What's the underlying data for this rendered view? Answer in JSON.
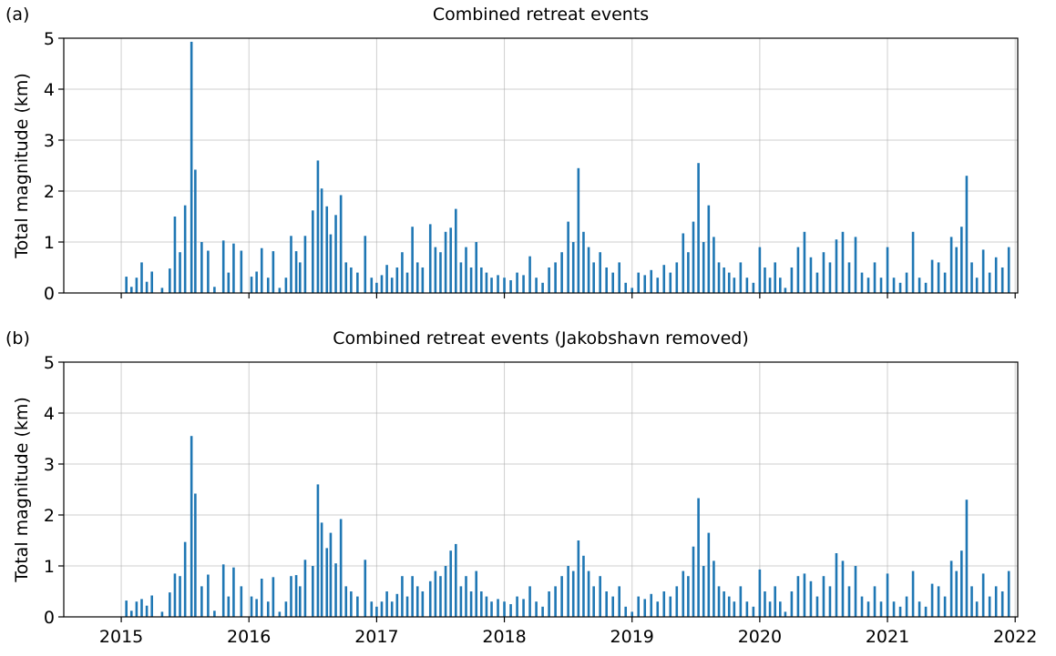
{
  "chart_data": [
    {
      "type": "bar",
      "label": "(a)",
      "title": "Combined retreat events",
      "y_label": "Total magnitude (km)",
      "color": "#1f77b4",
      "grid": true,
      "xlim": [
        2014.55,
        2022.02
      ],
      "xticks": [
        2015,
        2016,
        2017,
        2018,
        2019,
        2020,
        2021,
        2022
      ],
      "ylim": [
        0,
        5
      ],
      "yticks": [
        0,
        1,
        2,
        3,
        4,
        5
      ],
      "x": [
        2015.04,
        2015.08,
        2015.12,
        2015.16,
        2015.2,
        2015.24,
        2015.32,
        2015.38,
        2015.42,
        2015.46,
        2015.5,
        2015.55,
        2015.58,
        2015.63,
        2015.68,
        2015.73,
        2015.8,
        2015.84,
        2015.88,
        2015.94,
        2016.02,
        2016.06,
        2016.1,
        2016.15,
        2016.19,
        2016.24,
        2016.29,
        2016.33,
        2016.37,
        2016.4,
        2016.44,
        2016.5,
        2016.54,
        2016.57,
        2016.61,
        2016.64,
        2016.68,
        2016.72,
        2016.76,
        2016.8,
        2016.85,
        2016.91,
        2016.96,
        2017.0,
        2017.04,
        2017.08,
        2017.12,
        2017.16,
        2017.2,
        2017.24,
        2017.28,
        2017.32,
        2017.36,
        2017.42,
        2017.46,
        2017.5,
        2017.54,
        2017.58,
        2017.62,
        2017.66,
        2017.7,
        2017.74,
        2017.78,
        2017.82,
        2017.86,
        2017.9,
        2017.95,
        2018.0,
        2018.05,
        2018.1,
        2018.15,
        2018.2,
        2018.25,
        2018.3,
        2018.35,
        2018.4,
        2018.45,
        2018.5,
        2018.54,
        2018.58,
        2018.62,
        2018.66,
        2018.7,
        2018.75,
        2018.8,
        2018.85,
        2018.9,
        2018.95,
        2019.0,
        2019.05,
        2019.1,
        2019.15,
        2019.2,
        2019.25,
        2019.3,
        2019.35,
        2019.4,
        2019.44,
        2019.48,
        2019.52,
        2019.56,
        2019.6,
        2019.64,
        2019.68,
        2019.72,
        2019.76,
        2019.8,
        2019.85,
        2019.9,
        2019.95,
        2020.0,
        2020.04,
        2020.08,
        2020.12,
        2020.16,
        2020.2,
        2020.25,
        2020.3,
        2020.35,
        2020.4,
        2020.45,
        2020.5,
        2020.55,
        2020.6,
        2020.65,
        2020.7,
        2020.75,
        2020.8,
        2020.85,
        2020.9,
        2020.95,
        2021.0,
        2021.05,
        2021.1,
        2021.15,
        2021.2,
        2021.25,
        2021.3,
        2021.35,
        2021.4,
        2021.45,
        2021.5,
        2021.54,
        2021.58,
        2021.62,
        2021.66,
        2021.7,
        2021.75,
        2021.8,
        2021.85,
        2021.9,
        2021.95
      ],
      "values": [
        0.32,
        0.12,
        0.3,
        0.6,
        0.22,
        0.42,
        0.1,
        0.48,
        1.5,
        0.8,
        1.72,
        4.93,
        2.42,
        1.0,
        0.83,
        0.12,
        1.03,
        0.4,
        0.97,
        0.83,
        0.32,
        0.42,
        0.88,
        0.3,
        0.82,
        0.1,
        0.3,
        1.12,
        0.82,
        0.6,
        1.12,
        1.62,
        2.6,
        2.05,
        1.7,
        1.15,
        1.53,
        1.92,
        0.6,
        0.5,
        0.4,
        1.12,
        0.3,
        0.2,
        0.35,
        0.55,
        0.3,
        0.5,
        0.8,
        0.4,
        1.3,
        0.6,
        0.5,
        1.35,
        0.9,
        0.8,
        1.2,
        1.28,
        1.65,
        0.6,
        0.9,
        0.5,
        1.0,
        0.5,
        0.4,
        0.3,
        0.35,
        0.3,
        0.25,
        0.4,
        0.35,
        0.72,
        0.3,
        0.2,
        0.5,
        0.6,
        0.8,
        1.4,
        1.0,
        2.45,
        1.2,
        0.9,
        0.6,
        0.8,
        0.5,
        0.4,
        0.6,
        0.2,
        0.1,
        0.4,
        0.35,
        0.45,
        0.3,
        0.55,
        0.4,
        0.6,
        1.17,
        0.8,
        1.4,
        2.55,
        1.0,
        1.72,
        1.1,
        0.6,
        0.5,
        0.4,
        0.3,
        0.6,
        0.3,
        0.2,
        0.9,
        0.5,
        0.3,
        0.6,
        0.3,
        0.1,
        0.5,
        0.9,
        1.2,
        0.7,
        0.4,
        0.8,
        0.6,
        1.05,
        1.2,
        0.6,
        1.1,
        0.4,
        0.3,
        0.6,
        0.3,
        0.9,
        0.3,
        0.2,
        0.4,
        1.2,
        0.3,
        0.2,
        0.65,
        0.6,
        0.4,
        1.1,
        0.9,
        1.3,
        2.3,
        0.6,
        0.3,
        0.85,
        0.4,
        0.7,
        0.5,
        0.9
      ]
    },
    {
      "type": "bar",
      "label": "(b)",
      "title": "Combined retreat events (Jakobshavn removed)",
      "y_label": "Total magnitude (km)",
      "color": "#1f77b4",
      "grid": true,
      "xlim": [
        2014.55,
        2022.02
      ],
      "xticks": [
        2015,
        2016,
        2017,
        2018,
        2019,
        2020,
        2021,
        2022
      ],
      "ylim": [
        0,
        5
      ],
      "yticks": [
        0,
        1,
        2,
        3,
        4,
        5
      ],
      "x": [
        2015.04,
        2015.08,
        2015.12,
        2015.16,
        2015.2,
        2015.24,
        2015.32,
        2015.38,
        2015.42,
        2015.46,
        2015.5,
        2015.55,
        2015.58,
        2015.63,
        2015.68,
        2015.73,
        2015.8,
        2015.84,
        2015.88,
        2015.94,
        2016.02,
        2016.06,
        2016.1,
        2016.15,
        2016.19,
        2016.24,
        2016.29,
        2016.33,
        2016.37,
        2016.4,
        2016.44,
        2016.5,
        2016.54,
        2016.57,
        2016.61,
        2016.64,
        2016.68,
        2016.72,
        2016.76,
        2016.8,
        2016.85,
        2016.91,
        2016.96,
        2017.0,
        2017.04,
        2017.08,
        2017.12,
        2017.16,
        2017.2,
        2017.24,
        2017.28,
        2017.32,
        2017.36,
        2017.42,
        2017.46,
        2017.5,
        2017.54,
        2017.58,
        2017.62,
        2017.66,
        2017.7,
        2017.74,
        2017.78,
        2017.82,
        2017.86,
        2017.9,
        2017.95,
        2018.0,
        2018.05,
        2018.1,
        2018.15,
        2018.2,
        2018.25,
        2018.3,
        2018.35,
        2018.4,
        2018.45,
        2018.5,
        2018.54,
        2018.58,
        2018.62,
        2018.66,
        2018.7,
        2018.75,
        2018.8,
        2018.85,
        2018.9,
        2018.95,
        2019.0,
        2019.05,
        2019.1,
        2019.15,
        2019.2,
        2019.25,
        2019.3,
        2019.35,
        2019.4,
        2019.44,
        2019.48,
        2019.52,
        2019.56,
        2019.6,
        2019.64,
        2019.68,
        2019.72,
        2019.76,
        2019.8,
        2019.85,
        2019.9,
        2019.95,
        2020.0,
        2020.04,
        2020.08,
        2020.12,
        2020.16,
        2020.2,
        2020.25,
        2020.3,
        2020.35,
        2020.4,
        2020.45,
        2020.5,
        2020.55,
        2020.6,
        2020.65,
        2020.7,
        2020.75,
        2020.8,
        2020.85,
        2020.9,
        2020.95,
        2021.0,
        2021.05,
        2021.1,
        2021.15,
        2021.2,
        2021.25,
        2021.3,
        2021.35,
        2021.4,
        2021.45,
        2021.5,
        2021.54,
        2021.58,
        2021.62,
        2021.66,
        2021.7,
        2021.75,
        2021.8,
        2021.85,
        2021.9,
        2021.95
      ],
      "values": [
        0.32,
        0.12,
        0.3,
        0.35,
        0.22,
        0.42,
        0.1,
        0.48,
        0.85,
        0.8,
        1.47,
        3.55,
        2.42,
        0.6,
        0.83,
        0.12,
        1.03,
        0.4,
        0.97,
        0.6,
        0.4,
        0.35,
        0.75,
        0.3,
        0.78,
        0.1,
        0.3,
        0.8,
        0.82,
        0.6,
        1.12,
        1.0,
        2.6,
        1.85,
        1.35,
        1.65,
        1.05,
        1.92,
        0.6,
        0.5,
        0.4,
        1.12,
        0.3,
        0.2,
        0.3,
        0.5,
        0.3,
        0.45,
        0.8,
        0.4,
        0.8,
        0.6,
        0.5,
        0.7,
        0.9,
        0.8,
        1.0,
        1.3,
        1.43,
        0.6,
        0.8,
        0.5,
        0.9,
        0.5,
        0.4,
        0.3,
        0.35,
        0.3,
        0.25,
        0.4,
        0.35,
        0.6,
        0.3,
        0.2,
        0.5,
        0.6,
        0.8,
        1.0,
        0.9,
        1.5,
        1.2,
        0.9,
        0.6,
        0.8,
        0.5,
        0.4,
        0.6,
        0.2,
        0.1,
        0.4,
        0.35,
        0.45,
        0.3,
        0.5,
        0.4,
        0.6,
        0.9,
        0.8,
        1.38,
        2.33,
        1.0,
        1.65,
        1.1,
        0.6,
        0.5,
        0.4,
        0.3,
        0.6,
        0.3,
        0.2,
        0.93,
        0.5,
        0.3,
        0.6,
        0.3,
        0.1,
        0.5,
        0.8,
        0.85,
        0.7,
        0.4,
        0.8,
        0.6,
        1.25,
        1.1,
        0.6,
        1.0,
        0.4,
        0.3,
        0.6,
        0.3,
        0.85,
        0.3,
        0.2,
        0.4,
        0.9,
        0.3,
        0.2,
        0.65,
        0.6,
        0.4,
        1.1,
        0.9,
        1.3,
        2.3,
        0.6,
        0.3,
        0.85,
        0.4,
        0.6,
        0.5,
        0.9
      ]
    }
  ]
}
